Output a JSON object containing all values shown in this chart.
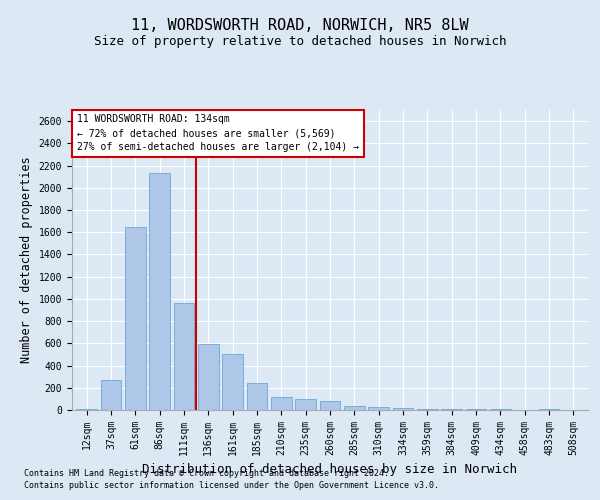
{
  "title": "11, WORDSWORTH ROAD, NORWICH, NR5 8LW",
  "subtitle": "Size of property relative to detached houses in Norwich",
  "xlabel": "Distribution of detached houses by size in Norwich",
  "ylabel": "Number of detached properties",
  "footnote1": "Contains HM Land Registry data © Crown copyright and database right 2024.",
  "footnote2": "Contains public sector information licensed under the Open Government Licence v3.0.",
  "annotation_line1": "11 WORDSWORTH ROAD: 134sqm",
  "annotation_line2": "← 72% of detached houses are smaller (5,569)",
  "annotation_line3": "27% of semi-detached houses are larger (2,104) →",
  "bar_color": "#aec6e8",
  "bar_edge_color": "#5a9fd4",
  "vline_color": "#cc0000",
  "vline_x": 4.5,
  "categories": [
    "12sqm",
    "37sqm",
    "61sqm",
    "86sqm",
    "111sqm",
    "136sqm",
    "161sqm",
    "185sqm",
    "210sqm",
    "235sqm",
    "260sqm",
    "285sqm",
    "310sqm",
    "334sqm",
    "359sqm",
    "384sqm",
    "409sqm",
    "434sqm",
    "458sqm",
    "483sqm",
    "508sqm"
  ],
  "values": [
    10,
    270,
    1650,
    2130,
    960,
    590,
    500,
    240,
    120,
    100,
    80,
    40,
    25,
    15,
    10,
    8,
    5,
    5,
    3,
    5,
    3
  ],
  "ylim": [
    0,
    2700
  ],
  "yticks": [
    0,
    200,
    400,
    600,
    800,
    1000,
    1200,
    1400,
    1600,
    1800,
    2000,
    2200,
    2400,
    2600
  ],
  "background_color": "#dde8f5",
  "plot_background": "#dde8f5",
  "grid_color": "#ffffff",
  "title_fontsize": 11,
  "subtitle_fontsize": 9,
  "axis_label_fontsize": 8.5,
  "tick_fontsize": 7
}
